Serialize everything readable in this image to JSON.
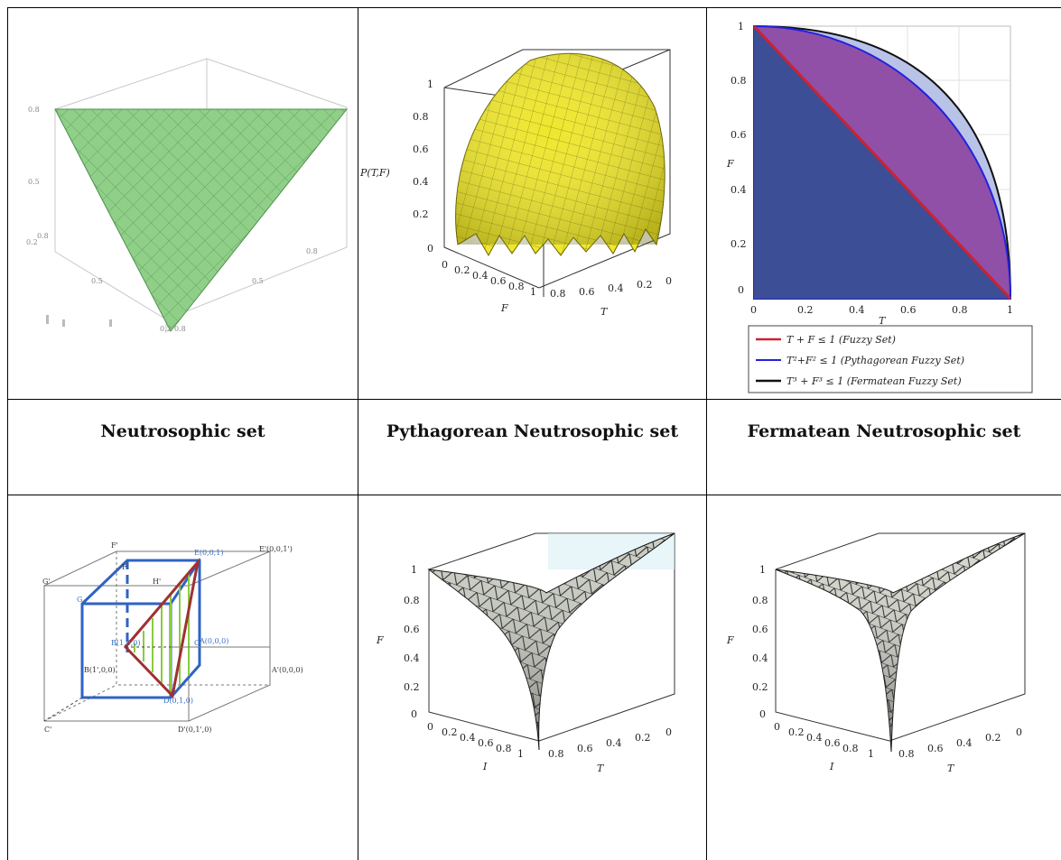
{
  "captions": {
    "neutrosophic": "Neutrosophic set",
    "pythagorean": "Pythagorean Neutrosophic set",
    "fermatean": "Fermatean Neutrosophic set"
  },
  "pythagorean_plot": {
    "zlabel": "P(T,F)",
    "xlabel": "F",
    "ylabel": "T",
    "z_ticks": [
      "1",
      "0.8",
      "0.6",
      "0.4",
      "0.2",
      "0"
    ],
    "f_ticks": [
      "0",
      "0.2",
      "0.4",
      "0.6",
      "0.8",
      "1"
    ],
    "t_ticks": [
      "0.8",
      "0.6",
      "0.4",
      "0.2",
      "0"
    ],
    "surface_color": "#e8e020"
  },
  "fermatean_plot": {
    "xlabel": "T",
    "ylabel": "F",
    "x_ticks": [
      "0",
      "0.2",
      "0.4",
      "0.6",
      "0.8",
      "1"
    ],
    "y_ticks": [
      "1",
      "0.8",
      "0.6",
      "0.4",
      "0.2",
      "0"
    ],
    "legend": [
      "T + F ≤ 1 (Fuzzy Set)",
      "T²+F² ≤ 1 (Pythagorean Fuzzy Set)",
      "T³ + F³ ≤ 1 (Fermatean Fuzzy Set)"
    ],
    "colors": {
      "fuzzy": "#cc2233",
      "pythagorean": "#2222dd",
      "fermatean": "#111111"
    }
  },
  "cube_diagram": {
    "labels": {
      "f_prime": "F'",
      "e_prime": "E'(0,0,1')",
      "f": "F",
      "e": "E(0,0,1)",
      "g_prime": "G'",
      "h_prime": "H'",
      "g": "G",
      "b": "B(1,0,0)",
      "c": "C",
      "a": "A(0,0,0)",
      "b_prime": "B(1',0,0)",
      "a_prime": "A'(0,0,0)",
      "d": "D(0,1,0)",
      "c_prime": "C'",
      "d_prime": "D'(0,1',0)"
    }
  },
  "bottom_plots": {
    "middle": {
      "zlabel": "F",
      "xlabel": "I",
      "ylabel": "T",
      "z_ticks": [
        "1",
        "0.8",
        "0.6",
        "0.4",
        "0.2",
        "0"
      ],
      "i_ticks": [
        "0",
        "0.2",
        "0.4",
        "0.6",
        "0.8",
        "1"
      ],
      "t_ticks": [
        "0.8",
        "0.6",
        "0.4",
        "0.2",
        "0"
      ]
    },
    "right": {
      "zlabel": "F",
      "xlabel": "I",
      "ylabel": "T",
      "z_ticks": [
        "1",
        "0.8",
        "0.6",
        "0.4",
        "0.2",
        "0"
      ],
      "i_ticks": [
        "0",
        "0.2",
        "0.4",
        "0.6",
        "0.8",
        "1"
      ],
      "t_ticks": [
        "0.8",
        "0.6",
        "0.4",
        "0.2",
        "0"
      ]
    }
  }
}
